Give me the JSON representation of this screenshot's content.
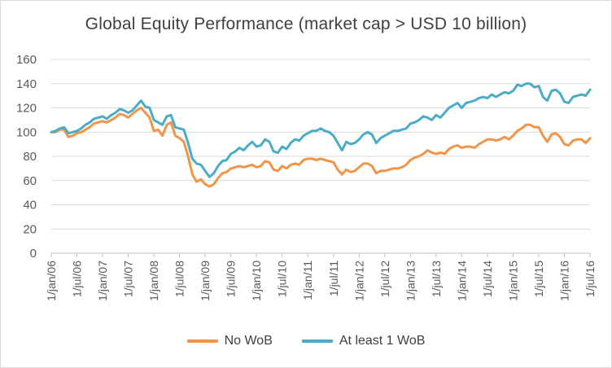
{
  "chart_data": {
    "type": "line",
    "title": "Global Equity Performance (market cap > USD 10 billion)",
    "xlabel": "",
    "ylabel": "",
    "ylim": [
      0,
      160
    ],
    "yticks": [
      0,
      20,
      40,
      60,
      80,
      100,
      120,
      140,
      160
    ],
    "xlim": [
      "2006-01",
      "2016-07"
    ],
    "xtick_labels": [
      "1/jan/06",
      "1/jul/06",
      "1/jan/07",
      "1/jul/07",
      "1/jan/08",
      "1/jul/08",
      "1/jan/09",
      "1/jul/09",
      "1/jan/10",
      "1/jul/10",
      "1/jan/11",
      "1/jul/11",
      "1/jan/12",
      "1/jul/12",
      "1/jan/13",
      "1/jul/13",
      "1/jan/14",
      "1/jul/14",
      "1/jan/15",
      "1/jul/15",
      "1/jan/16",
      "1/jul/16"
    ],
    "grid": true,
    "legend_position": "bottom",
    "series": [
      {
        "name": "No WoB",
        "color": "#f0954a",
        "points": [
          [
            "2006-01",
            100
          ],
          [
            "2006-02",
            100
          ],
          [
            "2006-03",
            102
          ],
          [
            "2006-04",
            102
          ],
          [
            "2006-05",
            96
          ],
          [
            "2006-06",
            97
          ],
          [
            "2006-07",
            99
          ],
          [
            "2006-08",
            100
          ],
          [
            "2006-09",
            102
          ],
          [
            "2006-10",
            104
          ],
          [
            "2006-11",
            107
          ],
          [
            "2006-12",
            108
          ],
          [
            "2007-01",
            109
          ],
          [
            "2007-02",
            108
          ],
          [
            "2007-03",
            110
          ],
          [
            "2007-04",
            112
          ],
          [
            "2007-05",
            115
          ],
          [
            "2007-06",
            114
          ],
          [
            "2007-07",
            112
          ],
          [
            "2007-08",
            115
          ],
          [
            "2007-09",
            118
          ],
          [
            "2007-10",
            120
          ],
          [
            "2007-11",
            116
          ],
          [
            "2007-12",
            112
          ],
          [
            "2008-01",
            101
          ],
          [
            "2008-02",
            102
          ],
          [
            "2008-03",
            97
          ],
          [
            "2008-04",
            106
          ],
          [
            "2008-05",
            108
          ],
          [
            "2008-06",
            97
          ],
          [
            "2008-07",
            95
          ],
          [
            "2008-08",
            92
          ],
          [
            "2008-09",
            80
          ],
          [
            "2008-10",
            65
          ],
          [
            "2008-11",
            59
          ],
          [
            "2008-12",
            61
          ],
          [
            "2009-01",
            57
          ],
          [
            "2009-02",
            55
          ],
          [
            "2009-03",
            57
          ],
          [
            "2009-04",
            62
          ],
          [
            "2009-05",
            66
          ],
          [
            "2009-06",
            67
          ],
          [
            "2009-07",
            70
          ],
          [
            "2009-08",
            71
          ],
          [
            "2009-09",
            72
          ],
          [
            "2009-10",
            71
          ],
          [
            "2009-11",
            72
          ],
          [
            "2009-12",
            73
          ],
          [
            "2010-01",
            71
          ],
          [
            "2010-02",
            72
          ],
          [
            "2010-03",
            76
          ],
          [
            "2010-04",
            75
          ],
          [
            "2010-05",
            69
          ],
          [
            "2010-06",
            68
          ],
          [
            "2010-07",
            72
          ],
          [
            "2010-08",
            70
          ],
          [
            "2010-09",
            73
          ],
          [
            "2010-10",
            74
          ],
          [
            "2010-11",
            73
          ],
          [
            "2010-12",
            77
          ],
          [
            "2011-01",
            78
          ],
          [
            "2011-02",
            78
          ],
          [
            "2011-03",
            77
          ],
          [
            "2011-04",
            78
          ],
          [
            "2011-05",
            77
          ],
          [
            "2011-06",
            76
          ],
          [
            "2011-07",
            75
          ],
          [
            "2011-08",
            69
          ],
          [
            "2011-09",
            65
          ],
          [
            "2011-10",
            69
          ],
          [
            "2011-11",
            67
          ],
          [
            "2011-12",
            68
          ],
          [
            "2012-01",
            71
          ],
          [
            "2012-02",
            74
          ],
          [
            "2012-03",
            74
          ],
          [
            "2012-04",
            72
          ],
          [
            "2012-05",
            66
          ],
          [
            "2012-06",
            68
          ],
          [
            "2012-07",
            68
          ],
          [
            "2012-08",
            69
          ],
          [
            "2012-09",
            70
          ],
          [
            "2012-10",
            70
          ],
          [
            "2012-11",
            71
          ],
          [
            "2012-12",
            73
          ],
          [
            "2013-01",
            77
          ],
          [
            "2013-02",
            79
          ],
          [
            "2013-03",
            80
          ],
          [
            "2013-04",
            82
          ],
          [
            "2013-05",
            85
          ],
          [
            "2013-06",
            83
          ],
          [
            "2013-07",
            82
          ],
          [
            "2013-08",
            83
          ],
          [
            "2013-09",
            82
          ],
          [
            "2013-10",
            86
          ],
          [
            "2013-11",
            88
          ],
          [
            "2013-12",
            89
          ],
          [
            "2014-01",
            87
          ],
          [
            "2014-02",
            88
          ],
          [
            "2014-03",
            88
          ],
          [
            "2014-04",
            87
          ],
          [
            "2014-05",
            90
          ],
          [
            "2014-06",
            92
          ],
          [
            "2014-07",
            94
          ],
          [
            "2014-08",
            94
          ],
          [
            "2014-09",
            93
          ],
          [
            "2014-10",
            94
          ],
          [
            "2014-11",
            96
          ],
          [
            "2014-12",
            94
          ],
          [
            "2015-01",
            97
          ],
          [
            "2015-02",
            101
          ],
          [
            "2015-03",
            103
          ],
          [
            "2015-04",
            106
          ],
          [
            "2015-05",
            106
          ],
          [
            "2015-06",
            104
          ],
          [
            "2015-07",
            104
          ],
          [
            "2015-08",
            97
          ],
          [
            "2015-09",
            92
          ],
          [
            "2015-10",
            98
          ],
          [
            "2015-11",
            99
          ],
          [
            "2015-12",
            96
          ],
          [
            "2016-01",
            90
          ],
          [
            "2016-02",
            89
          ],
          [
            "2016-03",
            93
          ],
          [
            "2016-04",
            94
          ],
          [
            "2016-05",
            94
          ],
          [
            "2016-06",
            91
          ],
          [
            "2016-07",
            95
          ]
        ]
      },
      {
        "name": "At least 1 WoB",
        "color": "#4aacc6",
        "points": [
          [
            "2006-01",
            100
          ],
          [
            "2006-02",
            101
          ],
          [
            "2006-03",
            103
          ],
          [
            "2006-04",
            104
          ],
          [
            "2006-05",
            99
          ],
          [
            "2006-06",
            100
          ],
          [
            "2006-07",
            101
          ],
          [
            "2006-08",
            103
          ],
          [
            "2006-09",
            106
          ],
          [
            "2006-10",
            108
          ],
          [
            "2006-11",
            111
          ],
          [
            "2006-12",
            112
          ],
          [
            "2007-01",
            113
          ],
          [
            "2007-02",
            111
          ],
          [
            "2007-03",
            114
          ],
          [
            "2007-04",
            116
          ],
          [
            "2007-05",
            119
          ],
          [
            "2007-06",
            118
          ],
          [
            "2007-07",
            116
          ],
          [
            "2007-08",
            118
          ],
          [
            "2007-09",
            122
          ],
          [
            "2007-10",
            126
          ],
          [
            "2007-11",
            121
          ],
          [
            "2007-12",
            120
          ],
          [
            "2008-01",
            110
          ],
          [
            "2008-02",
            108
          ],
          [
            "2008-03",
            106
          ],
          [
            "2008-04",
            113
          ],
          [
            "2008-05",
            114
          ],
          [
            "2008-06",
            104
          ],
          [
            "2008-07",
            103
          ],
          [
            "2008-08",
            102
          ],
          [
            "2008-09",
            91
          ],
          [
            "2008-10",
            78
          ],
          [
            "2008-11",
            74
          ],
          [
            "2008-12",
            73
          ],
          [
            "2009-01",
            68
          ],
          [
            "2009-02",
            63
          ],
          [
            "2009-03",
            66
          ],
          [
            "2009-04",
            72
          ],
          [
            "2009-05",
            76
          ],
          [
            "2009-06",
            77
          ],
          [
            "2009-07",
            82
          ],
          [
            "2009-08",
            84
          ],
          [
            "2009-09",
            87
          ],
          [
            "2009-10",
            85
          ],
          [
            "2009-11",
            89
          ],
          [
            "2009-12",
            92
          ],
          [
            "2010-01",
            88
          ],
          [
            "2010-02",
            89
          ],
          [
            "2010-03",
            94
          ],
          [
            "2010-04",
            92
          ],
          [
            "2010-05",
            84
          ],
          [
            "2010-06",
            83
          ],
          [
            "2010-07",
            88
          ],
          [
            "2010-08",
            86
          ],
          [
            "2010-09",
            91
          ],
          [
            "2010-10",
            94
          ],
          [
            "2010-11",
            93
          ],
          [
            "2010-12",
            97
          ],
          [
            "2011-01",
            99
          ],
          [
            "2011-02",
            101
          ],
          [
            "2011-03",
            101
          ],
          [
            "2011-04",
            103
          ],
          [
            "2011-05",
            101
          ],
          [
            "2011-06",
            100
          ],
          [
            "2011-07",
            97
          ],
          [
            "2011-08",
            91
          ],
          [
            "2011-09",
            85
          ],
          [
            "2011-10",
            92
          ],
          [
            "2011-11",
            90
          ],
          [
            "2011-12",
            91
          ],
          [
            "2012-01",
            94
          ],
          [
            "2012-02",
            98
          ],
          [
            "2012-03",
            100
          ],
          [
            "2012-04",
            98
          ],
          [
            "2012-05",
            91
          ],
          [
            "2012-06",
            95
          ],
          [
            "2012-07",
            97
          ],
          [
            "2012-08",
            99
          ],
          [
            "2012-09",
            101
          ],
          [
            "2012-10",
            101
          ],
          [
            "2012-11",
            102
          ],
          [
            "2012-12",
            103
          ],
          [
            "2013-01",
            107
          ],
          [
            "2013-02",
            108
          ],
          [
            "2013-03",
            110
          ],
          [
            "2013-04",
            113
          ],
          [
            "2013-05",
            112
          ],
          [
            "2013-06",
            110
          ],
          [
            "2013-07",
            114
          ],
          [
            "2013-08",
            112
          ],
          [
            "2013-09",
            116
          ],
          [
            "2013-10",
            120
          ],
          [
            "2013-11",
            122
          ],
          [
            "2013-12",
            124
          ],
          [
            "2014-01",
            120
          ],
          [
            "2014-02",
            124
          ],
          [
            "2014-03",
            125
          ],
          [
            "2014-04",
            126
          ],
          [
            "2014-05",
            128
          ],
          [
            "2014-06",
            129
          ],
          [
            "2014-07",
            128
          ],
          [
            "2014-08",
            131
          ],
          [
            "2014-09",
            129
          ],
          [
            "2014-10",
            131
          ],
          [
            "2014-11",
            133
          ],
          [
            "2014-12",
            132
          ],
          [
            "2015-01",
            134
          ],
          [
            "2015-02",
            139
          ],
          [
            "2015-03",
            138
          ],
          [
            "2015-04",
            140
          ],
          [
            "2015-05",
            140
          ],
          [
            "2015-06",
            137
          ],
          [
            "2015-07",
            138
          ],
          [
            "2015-08",
            129
          ],
          [
            "2015-09",
            126
          ],
          [
            "2015-10",
            134
          ],
          [
            "2015-11",
            135
          ],
          [
            "2015-12",
            132
          ],
          [
            "2016-01",
            125
          ],
          [
            "2016-02",
            124
          ],
          [
            "2016-03",
            129
          ],
          [
            "2016-04",
            130
          ],
          [
            "2016-05",
            131
          ],
          [
            "2016-06",
            130
          ],
          [
            "2016-07",
            135
          ]
        ]
      }
    ]
  }
}
